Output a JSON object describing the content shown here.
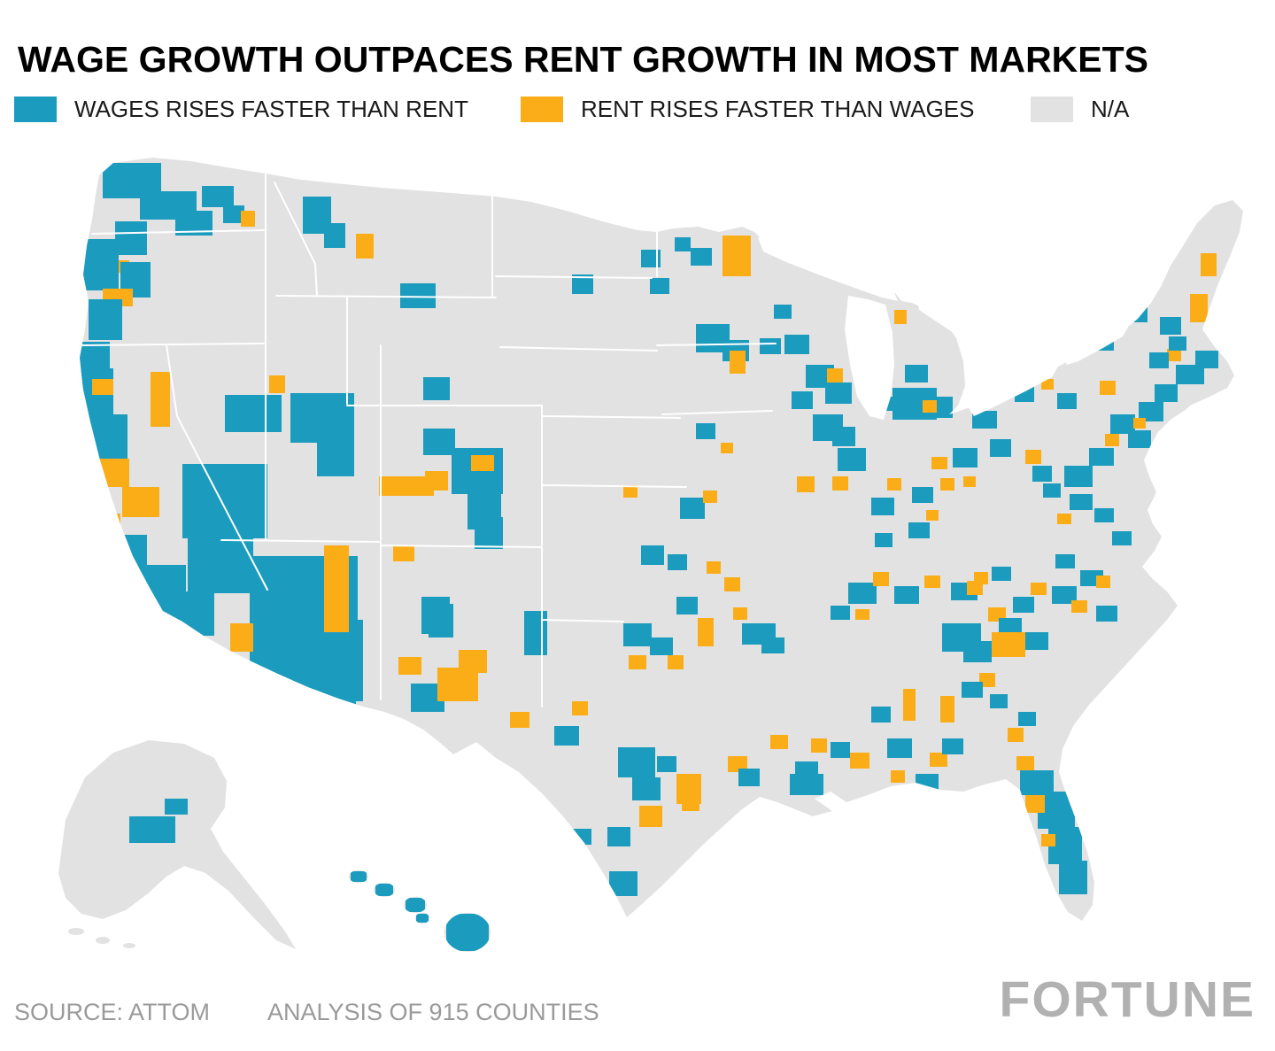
{
  "title": "WAGE GROWTH OUTPACES RENT GROWTH IN MOST MARKETS",
  "legend": [
    {
      "label": "WAGES RISES FASTER THAN RENT",
      "color": "#1B9CBE"
    },
    {
      "label": "RENT RISES FASTER THAN WAGES",
      "color": "#FBAD18"
    },
    {
      "label": "N/A",
      "color": "#E2E2E2"
    }
  ],
  "footer": {
    "source": "SOURCE: ATTOM",
    "analysis": "ANALYSIS OF 915 COUNTIES",
    "brand": "FORTUNE"
  },
  "chart_data": {
    "type": "heatmap",
    "subtype": "us-county-choropleth",
    "title": "WAGE GROWTH OUTPACES RENT GROWTH IN MOST MARKETS",
    "region": "United States (counties, incl. Alaska and Hawaii)",
    "counties_analyzed": 915,
    "source": "ATTOM",
    "categories": [
      {
        "key": "b",
        "label": "WAGES RISES FASTER THAN RENT",
        "color": "#1B9CBE"
      },
      {
        "key": "o",
        "label": "RENT RISES FASTER THAN WAGES",
        "color": "#FBAD18"
      },
      {
        "key": "na",
        "label": "N/A",
        "color": "#E2E2E2"
      }
    ],
    "category_colors": {
      "b": "#1B9CBE",
      "o": "#FBAD18",
      "na": "#E2E2E2"
    },
    "patch_format": [
      "category",
      "x",
      "y",
      "width",
      "height"
    ],
    "patches": [
      [
        "b",
        116,
        184,
        66,
        40
      ],
      [
        "b",
        158,
        216,
        64,
        32
      ],
      [
        "b",
        198,
        238,
        42,
        28
      ],
      [
        "b",
        130,
        250,
        36,
        38
      ],
      [
        "b",
        228,
        210,
        36,
        24
      ],
      [
        "b",
        252,
        232,
        24,
        20
      ],
      [
        "o",
        272,
        238,
        16,
        18
      ],
      [
        "o",
        124,
        294,
        22,
        14
      ],
      [
        "b",
        94,
        270,
        40,
        58
      ],
      [
        "b",
        136,
        296,
        34,
        40
      ],
      [
        "o",
        116,
        326,
        34,
        20
      ],
      [
        "b",
        100,
        338,
        38,
        46
      ],
      [
        "b",
        90,
        386,
        34,
        52
      ],
      [
        "o",
        402,
        264,
        20,
        28
      ],
      [
        "b",
        342,
        222,
        32,
        42
      ],
      [
        "b",
        366,
        252,
        24,
        28
      ],
      [
        "b",
        452,
        320,
        40,
        28
      ],
      [
        "b",
        478,
        426,
        30,
        26
      ],
      [
        "o",
        170,
        420,
        22,
        62
      ],
      [
        "o",
        304,
        424,
        18,
        20
      ],
      [
        "b",
        86,
        416,
        42,
        62
      ],
      [
        "b",
        94,
        468,
        50,
        58
      ],
      [
        "o",
        104,
        428,
        24,
        18
      ],
      [
        "o",
        108,
        518,
        38,
        32
      ],
      [
        "o",
        138,
        550,
        42,
        34
      ],
      [
        "o",
        106,
        580,
        30,
        26
      ],
      [
        "b",
        118,
        604,
        48,
        46
      ],
      [
        "b",
        146,
        638,
        64,
        52
      ],
      [
        "b",
        170,
        668,
        72,
        50
      ],
      [
        "o",
        94,
        640,
        14,
        12
      ],
      [
        "o",
        98,
        664,
        12,
        10
      ],
      [
        "b",
        212,
        600,
        74,
        70
      ],
      [
        "b",
        206,
        524,
        96,
        84
      ],
      [
        "b",
        254,
        446,
        64,
        42
      ],
      [
        "b",
        328,
        444,
        72,
        56
      ],
      [
        "b",
        358,
        498,
        42,
        40
      ],
      [
        "b",
        282,
        628,
        122,
        152
      ],
      [
        "b",
        330,
        700,
        80,
        92
      ],
      [
        "o",
        260,
        704,
        26,
        32
      ],
      [
        "o",
        366,
        616,
        28,
        98
      ],
      [
        "b",
        360,
        758,
        42,
        50
      ],
      [
        "o",
        444,
        616,
        24,
        18
      ],
      [
        "b",
        476,
        674,
        32,
        42
      ],
      [
        "b",
        510,
        506,
        58,
        52
      ],
      [
        "b",
        528,
        554,
        38,
        44
      ],
      [
        "o",
        532,
        514,
        26,
        18
      ],
      [
        "o",
        428,
        538,
        62,
        22
      ],
      [
        "o",
        480,
        532,
        26,
        22
      ],
      [
        "b",
        478,
        484,
        36,
        30
      ],
      [
        "b",
        536,
        584,
        32,
        36
      ],
      [
        "b",
        484,
        682,
        28,
        38
      ],
      [
        "b",
        646,
        310,
        24,
        22
      ],
      [
        "b",
        724,
        282,
        22,
        20
      ],
      [
        "b",
        734,
        314,
        22,
        18
      ],
      [
        "b",
        592,
        690,
        26,
        50
      ],
      [
        "o",
        704,
        548,
        16,
        14
      ],
      [
        "b",
        786,
        478,
        22,
        18
      ],
      [
        "o",
        814,
        500,
        14,
        12
      ],
      [
        "b",
        768,
        562,
        28,
        24
      ],
      [
        "o",
        794,
        554,
        16,
        14
      ],
      [
        "b",
        724,
        616,
        26,
        22
      ],
      [
        "b",
        754,
        626,
        22,
        18
      ],
      [
        "o",
        798,
        634,
        16,
        14
      ],
      [
        "o",
        818,
        652,
        18,
        16
      ],
      [
        "b",
        764,
        674,
        24,
        20
      ],
      [
        "o",
        788,
        698,
        18,
        32
      ],
      [
        "b",
        704,
        704,
        32,
        26
      ],
      [
        "b",
        734,
        720,
        26,
        20
      ],
      [
        "o",
        710,
        740,
        20,
        16
      ],
      [
        "o",
        754,
        740,
        18,
        16
      ],
      [
        "b",
        838,
        704,
        38,
        24
      ],
      [
        "b",
        860,
        720,
        26,
        18
      ],
      [
        "o",
        828,
        686,
        16,
        14
      ],
      [
        "o",
        646,
        792,
        18,
        16
      ],
      [
        "o",
        576,
        804,
        22,
        18
      ],
      [
        "b",
        464,
        772,
        38,
        32
      ],
      [
        "o",
        494,
        754,
        46,
        38
      ],
      [
        "o",
        518,
        734,
        32,
        26
      ],
      [
        "o",
        450,
        742,
        26,
        20
      ],
      [
        "b",
        626,
        820,
        28,
        22
      ],
      [
        "b",
        698,
        844,
        42,
        34
      ],
      [
        "b",
        714,
        878,
        32,
        26
      ],
      [
        "o",
        722,
        910,
        26,
        24
      ],
      [
        "o",
        764,
        874,
        28,
        34
      ],
      [
        "b",
        686,
        934,
        26,
        22
      ],
      [
        "b",
        646,
        936,
        22,
        18
      ],
      [
        "b",
        688,
        984,
        32,
        28
      ],
      [
        "o",
        822,
        854,
        22,
        18
      ],
      [
        "b",
        834,
        868,
        24,
        20
      ],
      [
        "b",
        892,
        874,
        38,
        24
      ],
      [
        "b",
        742,
        854,
        22,
        18
      ],
      [
        "o",
        770,
        894,
        20,
        22
      ],
      [
        "o",
        816,
        266,
        32,
        46
      ],
      [
        "b",
        780,
        280,
        24,
        20
      ],
      [
        "b",
        762,
        268,
        18,
        16
      ],
      [
        "b",
        786,
        366,
        38,
        32
      ],
      [
        "b",
        816,
        384,
        30,
        24
      ],
      [
        "o",
        824,
        396,
        18,
        26
      ],
      [
        "b",
        858,
        382,
        24,
        18
      ],
      [
        "b",
        886,
        378,
        28,
        22
      ],
      [
        "b",
        910,
        412,
        32,
        26
      ],
      [
        "b",
        932,
        432,
        30,
        24
      ],
      [
        "b",
        894,
        442,
        24,
        20
      ],
      [
        "o",
        934,
        416,
        18,
        16
      ],
      [
        "b",
        918,
        468,
        34,
        30
      ],
      [
        "b",
        940,
        482,
        26,
        22
      ],
      [
        "b",
        946,
        506,
        32,
        26
      ],
      [
        "o",
        940,
        538,
        18,
        16
      ],
      [
        "o",
        900,
        538,
        20,
        18
      ],
      [
        "b",
        874,
        344,
        20,
        16
      ],
      [
        "b",
        1008,
        438,
        50,
        36
      ],
      [
        "b",
        1044,
        448,
        32,
        24
      ],
      [
        "o",
        1042,
        452,
        16,
        14
      ],
      [
        "b",
        1022,
        412,
        26,
        20
      ],
      [
        "o",
        1010,
        350,
        14,
        16
      ],
      [
        "b",
        990,
        448,
        20,
        16
      ],
      [
        "b",
        984,
        562,
        26,
        20
      ],
      [
        "o",
        1002,
        540,
        16,
        14
      ],
      [
        "b",
        1030,
        550,
        24,
        18
      ],
      [
        "o",
        1052,
        516,
        18,
        14
      ],
      [
        "b",
        1076,
        506,
        28,
        22
      ],
      [
        "b",
        1098,
        464,
        28,
        20
      ],
      [
        "o",
        1062,
        540,
        16,
        14
      ],
      [
        "b",
        1026,
        590,
        24,
        18
      ],
      [
        "o",
        1046,
        576,
        14,
        12
      ],
      [
        "b",
        988,
        602,
        20,
        16
      ],
      [
        "o",
        1088,
        538,
        14,
        12
      ],
      [
        "b",
        958,
        658,
        32,
        24
      ],
      [
        "o",
        986,
        646,
        18,
        16
      ],
      [
        "b",
        1010,
        662,
        28,
        20
      ],
      [
        "o",
        1044,
        650,
        18,
        14
      ],
      [
        "b",
        1074,
        658,
        30,
        20
      ],
      [
        "o",
        1100,
        646,
        16,
        14
      ],
      [
        "b",
        938,
        684,
        22,
        16
      ],
      [
        "o",
        966,
        688,
        16,
        12
      ],
      [
        "b",
        1120,
        640,
        22,
        16
      ],
      [
        "o",
        1158,
        508,
        18,
        16
      ],
      [
        "b",
        1166,
        526,
        22,
        18
      ],
      [
        "b",
        1178,
        546,
        20,
        16
      ],
      [
        "b",
        1208,
        558,
        26,
        18
      ],
      [
        "b",
        1236,
        574,
        22,
        16
      ],
      [
        "o",
        1194,
        580,
        16,
        12
      ],
      [
        "b",
        1256,
        600,
        22,
        16
      ],
      [
        "b",
        1064,
        704,
        44,
        32
      ],
      [
        "b",
        1088,
        724,
        32,
        24
      ],
      [
        "o",
        1092,
        656,
        18,
        16
      ],
      [
        "o",
        1116,
        686,
        20,
        16
      ],
      [
        "b",
        1128,
        698,
        26,
        22
      ],
      [
        "o",
        1120,
        714,
        38,
        28
      ],
      [
        "b",
        1158,
        714,
        26,
        20
      ],
      [
        "b",
        1144,
        674,
        24,
        18
      ],
      [
        "o",
        1164,
        658,
        18,
        14
      ],
      [
        "b",
        1188,
        662,
        28,
        20
      ],
      [
        "b",
        1220,
        644,
        26,
        18
      ],
      [
        "o",
        1210,
        678,
        18,
        14
      ],
      [
        "b",
        1238,
        684,
        24,
        18
      ],
      [
        "o",
        1238,
        650,
        16,
        14
      ],
      [
        "b",
        1192,
        626,
        22,
        16
      ],
      [
        "o",
        1106,
        760,
        18,
        16
      ],
      [
        "b",
        1086,
        770,
        24,
        18
      ],
      [
        "o",
        1062,
        786,
        16,
        30
      ],
      [
        "b",
        1118,
        784,
        20,
        16
      ],
      [
        "o",
        1138,
        822,
        18,
        16
      ],
      [
        "b",
        1150,
        804,
        20,
        16
      ],
      [
        "b",
        1002,
        834,
        28,
        22
      ],
      [
        "o",
        1020,
        778,
        14,
        36
      ],
      [
        "b",
        984,
        798,
        22,
        18
      ],
      [
        "o",
        1050,
        850,
        20,
        16
      ],
      [
        "b",
        1064,
        834,
        24,
        18
      ],
      [
        "o",
        960,
        850,
        22,
        18
      ],
      [
        "b",
        938,
        838,
        22,
        18
      ],
      [
        "o",
        916,
        834,
        18,
        16
      ],
      [
        "b",
        898,
        860,
        26,
        20
      ],
      [
        "o",
        870,
        830,
        20,
        16
      ],
      [
        "b",
        1152,
        870,
        38,
        28
      ],
      [
        "b",
        1172,
        894,
        42,
        42
      ],
      [
        "b",
        1184,
        934,
        38,
        42
      ],
      [
        "b",
        1196,
        972,
        32,
        38
      ],
      [
        "o",
        1158,
        898,
        22,
        20
      ],
      [
        "o",
        1148,
        854,
        20,
        16
      ],
      [
        "b",
        1034,
        874,
        26,
        18
      ],
      [
        "o",
        1006,
        870,
        16,
        14
      ],
      [
        "o",
        1176,
        942,
        16,
        14
      ],
      [
        "b",
        1202,
        526,
        32,
        24
      ],
      [
        "b",
        1230,
        506,
        28,
        20
      ],
      [
        "o",
        1248,
        490,
        16,
        14
      ],
      [
        "b",
        1254,
        468,
        28,
        22
      ],
      [
        "b",
        1274,
        486,
        26,
        20
      ],
      [
        "b",
        1286,
        454,
        28,
        22
      ],
      [
        "o",
        1280,
        472,
        14,
        12
      ],
      [
        "b",
        1304,
        434,
        26,
        20
      ],
      [
        "b",
        1328,
        412,
        32,
        22
      ],
      [
        "b",
        1350,
        396,
        26,
        20
      ],
      [
        "o",
        1318,
        394,
        16,
        14
      ],
      [
        "b",
        1298,
        398,
        22,
        18
      ],
      [
        "o",
        1242,
        430,
        18,
        16
      ],
      [
        "b",
        1234,
        376,
        24,
        20
      ],
      [
        "o",
        1260,
        328,
        16,
        14
      ],
      [
        "b",
        1274,
        346,
        22,
        18
      ],
      [
        "b",
        1310,
        358,
        24,
        20
      ],
      [
        "o",
        1344,
        332,
        20,
        32
      ],
      [
        "o",
        1356,
        286,
        18,
        26
      ],
      [
        "b",
        1320,
        380,
        20,
        16
      ],
      [
        "b",
        1194,
        444,
        22,
        18
      ],
      [
        "b",
        1164,
        412,
        20,
        16
      ],
      [
        "o",
        1176,
        428,
        14,
        12
      ],
      [
        "b",
        1146,
        436,
        22,
        18
      ],
      [
        "b",
        1118,
        496,
        24,
        20
      ],
      [
        "b",
        146,
        922,
        52,
        30
      ],
      [
        "b",
        186,
        902,
        26,
        18
      ],
      [
        "b",
        396,
        984,
        18,
        12
      ],
      [
        "b",
        424,
        998,
        20,
        14
      ],
      [
        "b",
        458,
        1014,
        22,
        16
      ],
      [
        "b",
        470,
        1032,
        14,
        10
      ],
      [
        "b",
        504,
        1032,
        48,
        42
      ]
    ]
  }
}
